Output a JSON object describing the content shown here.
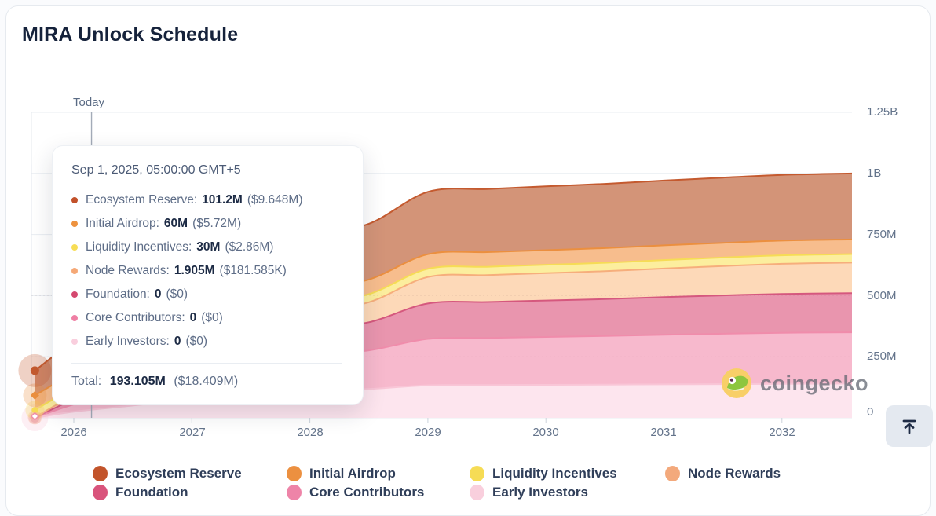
{
  "title": "MIRA Unlock Schedule",
  "today_label": "Today",
  "watermark_text": "coingecko",
  "tooltip": {
    "header": "Sep 1, 2025, 05:00:00 GMT+5",
    "rows": [
      {
        "label": "Ecosystem Reserve:",
        "value": "101.2M",
        "usd": "($9.648M)",
        "color": "#c2512a"
      },
      {
        "label": "Initial Airdrop:",
        "value": "60M",
        "usd": "($5.72M)",
        "color": "#ed923f"
      },
      {
        "label": "Liquidity Incentives:",
        "value": "30M",
        "usd": "($2.86M)",
        "color": "#f7dd55"
      },
      {
        "label": "Node Rewards:",
        "value": "1.905M",
        "usd": "($181.585K)",
        "color": "#f5a876"
      },
      {
        "label": "Foundation:",
        "value": "0",
        "usd": "($0)",
        "color": "#d4486f"
      },
      {
        "label": "Core Contributors:",
        "value": "0",
        "usd": "($0)",
        "color": "#ef7fa4"
      },
      {
        "label": "Early Investors:",
        "value": "0",
        "usd": "($0)",
        "color": "#f9cedd"
      }
    ],
    "total_label": "Total:",
    "total_value": "193.105M",
    "total_usd": "($18.409M)"
  },
  "axes": {
    "y_ticks": [
      "1.25B",
      "1B",
      "750M",
      "500M",
      "250M",
      "0"
    ],
    "x_ticks": [
      "2026",
      "2027",
      "2028",
      "2029",
      "2030",
      "2031",
      "2032"
    ]
  },
  "legend": [
    {
      "label": "Ecosystem Reserve",
      "color": "#c2542b"
    },
    {
      "label": "Initial Airdrop",
      "color": "#ec9040"
    },
    {
      "label": "Liquidity Incentives",
      "color": "#f6dc55"
    },
    {
      "label": "Node Rewards",
      "color": "#f3a97c"
    },
    {
      "label": "Foundation",
      "color": "#d9547c"
    },
    {
      "label": "Core Contributors",
      "color": "#ee84a8"
    },
    {
      "label": "Early Investors",
      "color": "#f9cfdd"
    }
  ],
  "controls": {
    "scroll_to_top_icon": "arrow-up-to-line"
  },
  "chart_data": {
    "type": "area",
    "stacked": true,
    "stack_order": "first_series_on_top",
    "title": "MIRA Unlock Schedule",
    "unit": "millions_of_tokens",
    "x_years": [
      2025.67,
      2026,
      2026.5,
      2027,
      2027.5,
      2028,
      2028.5,
      2029,
      2029.5,
      2030,
      2030.5,
      2031,
      2031.5,
      2032,
      2032.6
    ],
    "ylim": [
      0,
      1250
    ],
    "y_tick_values": [
      0,
      250,
      500,
      750,
      1000,
      1250
    ],
    "today_x_year": 2026.15,
    "hover_x_year": 2025.67,
    "legend_position": "bottom",
    "grid": true,
    "series": [
      {
        "name": "Ecosystem Reserve",
        "fill": "#d39478",
        "stroke": "#c45a2f",
        "values": [
          101.2,
          130,
          160,
          185,
          205,
          220,
          228,
          255,
          258,
          261,
          263,
          265,
          267,
          269,
          270
        ]
      },
      {
        "name": "Initial Airdrop",
        "fill": "#f7bd8d",
        "stroke": "#eb8f3f",
        "values": [
          60,
          60,
          60,
          60,
          60,
          60,
          60,
          60,
          60,
          60,
          60,
          60,
          60,
          60,
          60
        ]
      },
      {
        "name": "Liquidity Incentives",
        "fill": "#fcee9e",
        "stroke": "#f6dc55",
        "values": [
          30,
          30.5,
          31,
          31.5,
          32,
          32.5,
          33,
          33.5,
          34,
          34.2,
          34.4,
          34.6,
          34.8,
          35,
          35
        ]
      },
      {
        "name": "Node Rewards",
        "fill": "#fdd9b8",
        "stroke": "#f6ae7c",
        "values": [
          1.905,
          15,
          30,
          45,
          60,
          72,
          82,
          108,
          110,
          112,
          114,
          117,
          120,
          123,
          125
        ]
      },
      {
        "name": "Foundation",
        "fill": "#e995ae",
        "stroke": "#d5587e",
        "values": [
          0,
          20,
          45,
          70,
          90,
          105,
          115,
          145,
          147,
          149,
          151,
          154,
          157,
          159,
          160
        ]
      },
      {
        "name": "Core Contributors",
        "fill": "#f7b9cd",
        "stroke": "#f08cab",
        "values": [
          0,
          30,
          65,
          100,
          125,
          145,
          158,
          190,
          193,
          196,
          199,
          203,
          206,
          209,
          210
        ]
      },
      {
        "name": "Early Investors",
        "fill": "#fde5ee",
        "stroke": "#f9c6d7",
        "values": [
          0,
          25,
          50,
          75,
          95,
          110,
          118,
          133,
          134,
          135,
          136,
          137,
          138,
          139,
          140
        ]
      }
    ]
  }
}
